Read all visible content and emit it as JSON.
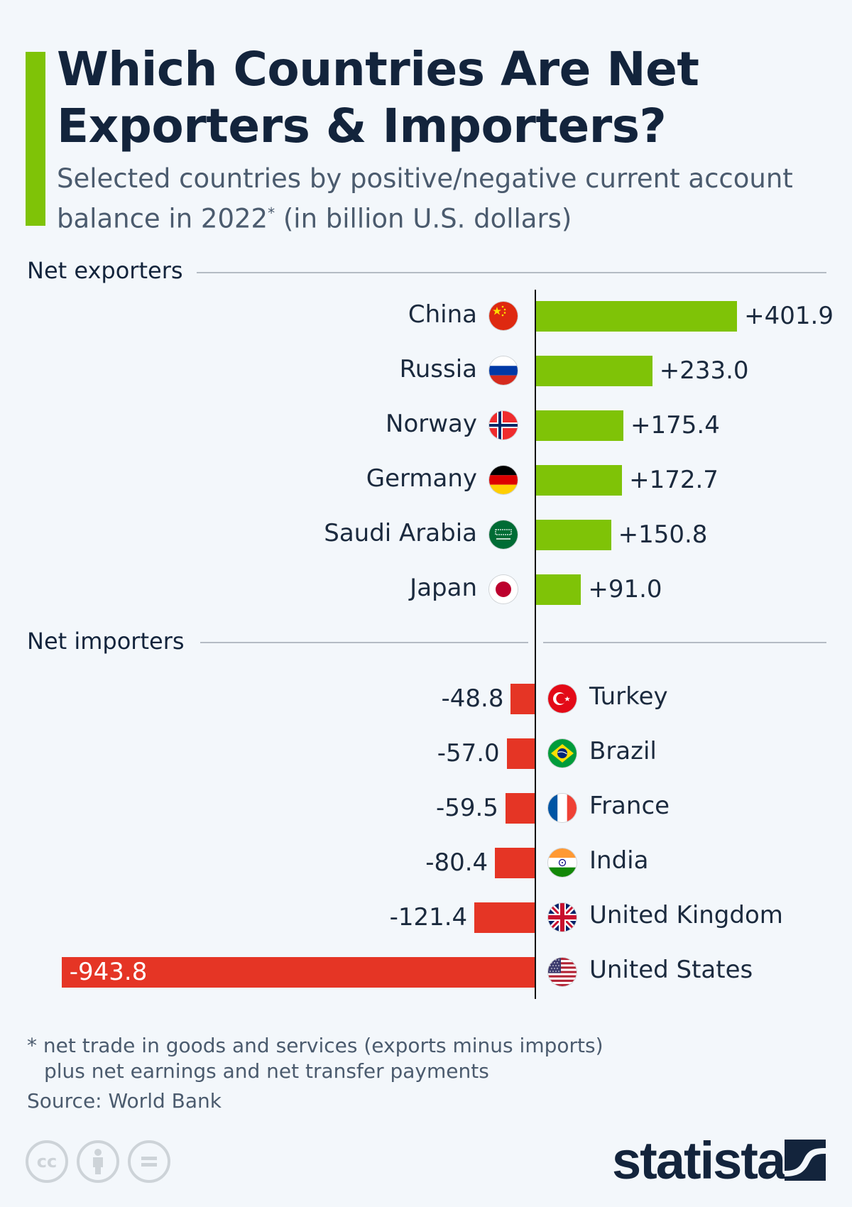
{
  "header": {
    "title": "Which Countries Are Net Exporters & Importers?",
    "subtitle_pre": "Selected countries by positive/negative current account balance in 2022",
    "subtitle_sup": "*",
    "subtitle_post": " (in billion U.S. dollars)",
    "accent_color": "#7fc307"
  },
  "sections": {
    "exporters_label": "Net exporters",
    "importers_label": "Net importers"
  },
  "colors": {
    "positive": "#7fc307",
    "negative": "#e53525",
    "text": "#1b2a3e"
  },
  "chart_data": {
    "type": "bar",
    "orientation": "horizontal",
    "title": "Which Countries Are Net Exporters & Importers?",
    "subtitle": "Selected countries by positive/negative current account balance in 2022* (in billion U.S. dollars)",
    "unit": "billion U.S. dollars",
    "groups": [
      {
        "name": "Net exporters",
        "categories": [
          "China",
          "Russia",
          "Norway",
          "Germany",
          "Saudi Arabia",
          "Japan"
        ],
        "values": [
          401.9,
          233.0,
          175.4,
          172.7,
          150.8,
          91.0
        ],
        "labels": [
          "+401.9",
          "+233.0",
          "+175.4",
          "+172.7",
          "+150.8",
          "+91.0"
        ]
      },
      {
        "name": "Net importers",
        "categories": [
          "Turkey",
          "Brazil",
          "France",
          "India",
          "United Kingdom",
          "United States"
        ],
        "values": [
          -48.8,
          -57.0,
          -59.5,
          -80.4,
          -121.4,
          -943.8
        ],
        "labels": [
          "-48.8",
          "-57.0",
          "-59.5",
          "-80.4",
          "-121.4",
          "-943.8"
        ]
      }
    ],
    "grid": false,
    "legend": "none"
  },
  "exporters": [
    {
      "country": "China",
      "value": 401.9,
      "label": "+401.9",
      "flag": "china-flag-icon"
    },
    {
      "country": "Russia",
      "value": 233.0,
      "label": "+233.0",
      "flag": "russia-flag-icon"
    },
    {
      "country": "Norway",
      "value": 175.4,
      "label": "+175.4",
      "flag": "norway-flag-icon"
    },
    {
      "country": "Germany",
      "value": 172.7,
      "label": "+172.7",
      "flag": "germany-flag-icon"
    },
    {
      "country": "Saudi Arabia",
      "value": 150.8,
      "label": "+150.8",
      "flag": "saudi-arabia-flag-icon"
    },
    {
      "country": "Japan",
      "value": 91.0,
      "label": "+91.0",
      "flag": "japan-flag-icon"
    }
  ],
  "importers": [
    {
      "country": "Turkey",
      "value": -48.8,
      "label": "-48.8",
      "flag": "turkey-flag-icon"
    },
    {
      "country": "Brazil",
      "value": -57.0,
      "label": "-57.0",
      "flag": "brazil-flag-icon"
    },
    {
      "country": "France",
      "value": -59.5,
      "label": "-59.5",
      "flag": "france-flag-icon"
    },
    {
      "country": "India",
      "value": -80.4,
      "label": "-80.4",
      "flag": "india-flag-icon"
    },
    {
      "country": "United Kingdom",
      "value": -121.4,
      "label": "-121.4",
      "flag": "uk-flag-icon"
    },
    {
      "country": "United States",
      "value": -943.8,
      "label": "-943.8",
      "flag": "usa-flag-icon"
    }
  ],
  "footer": {
    "note_line1": "* net trade in goods and services (exports minus imports)",
    "note_line2": "plus net earnings and net transfer payments",
    "source": "Source: World Bank",
    "license_icons": [
      "cc-icon",
      "attribution-icon",
      "no-derivatives-icon"
    ],
    "cc_text": "cc",
    "brand": "statista"
  }
}
